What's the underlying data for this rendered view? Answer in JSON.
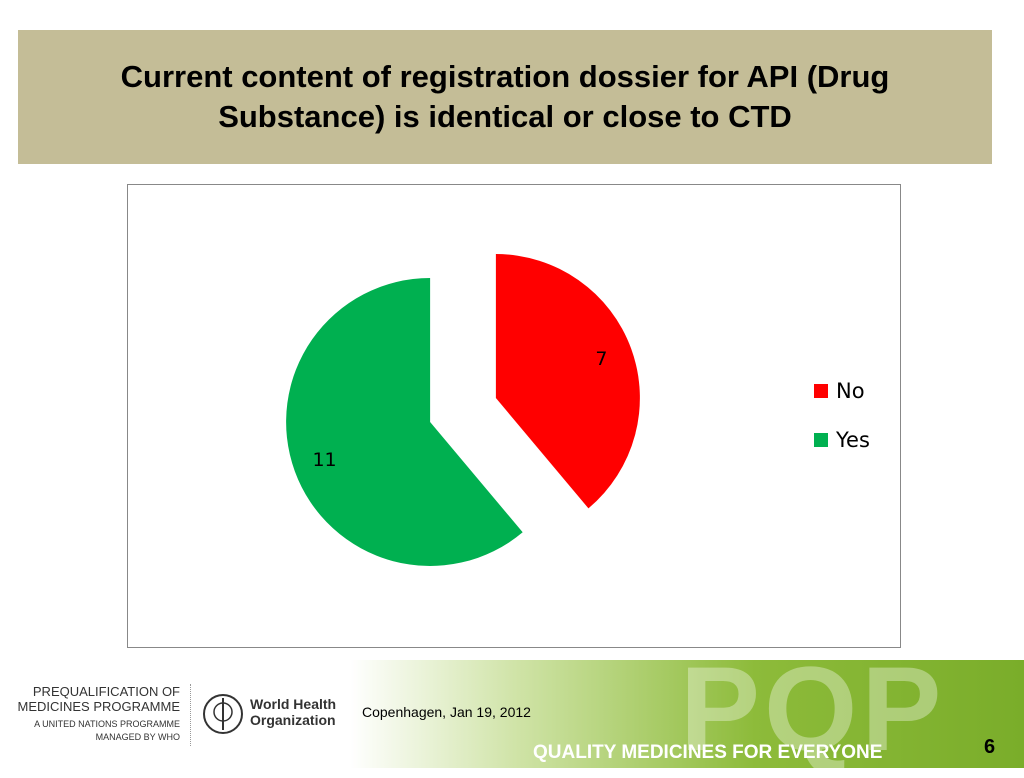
{
  "chart_data": {
    "type": "pie",
    "title": "Current content of registration dossier for API (Drug Substance) is identical or close to CTD",
    "categories": [
      "No",
      "Yes"
    ],
    "values": [
      7,
      11
    ],
    "colors": [
      "#ff0000",
      "#00b050"
    ],
    "legend": "right",
    "exploded": true
  },
  "footer": {
    "programme": "PREQUALIFICATION OF MEDICINES PROGRAMME",
    "programme_note": "A UNITED NATIONS PROGRAMME MANAGED BY WHO",
    "organization": "World Health Organization",
    "place_date": "Copenhagen, Jan 19, 2012",
    "brand": "PQP",
    "slogan": "QUALITY MEDICINES FOR EVERYONE",
    "page": "6"
  }
}
